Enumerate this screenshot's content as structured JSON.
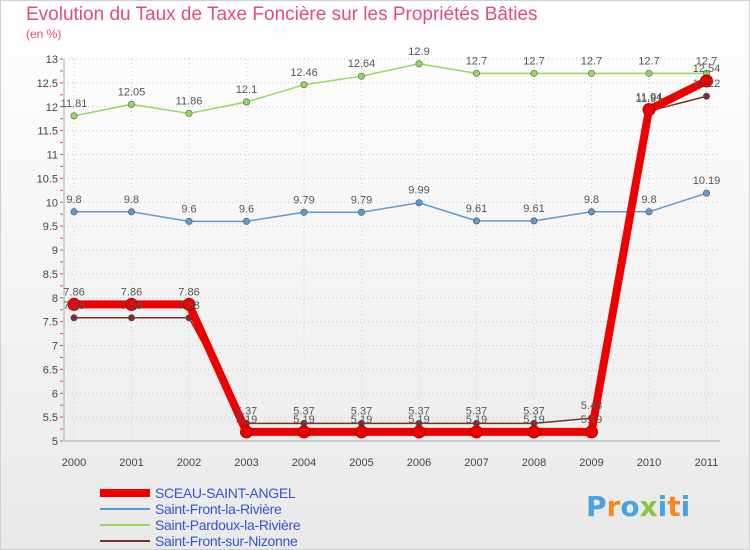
{
  "chart_data": {
    "type": "line",
    "title": "Evolution du Taux de Taxe Foncière sur les Propriétés Bâties",
    "unit_label": "(en %)",
    "xlabel": "",
    "ylabel": "",
    "categories": [
      "2000",
      "2001",
      "2002",
      "2003",
      "2004",
      "2005",
      "2006",
      "2007",
      "2008",
      "2009",
      "2010",
      "2011"
    ],
    "ylim": [
      5,
      13
    ],
    "yticks": [
      "5",
      "5.5",
      "6",
      "6.5",
      "7",
      "7.5",
      "8",
      "8.5",
      "9",
      "9.5",
      "10",
      "10.5",
      "11",
      "11.5",
      "12",
      "12.5",
      "13"
    ],
    "series": [
      {
        "name": "SCEAU-SAINT-ANGEL",
        "color": "#ee0000",
        "values": [
          7.86,
          7.86,
          7.86,
          5.19,
          5.19,
          5.19,
          5.19,
          5.19,
          5.19,
          5.19,
          11.94,
          12.54
        ],
        "labels": [
          "7.86",
          "7.86",
          "7.86",
          "5.19",
          "5.19",
          "5.19",
          "5.19",
          "5.19",
          "5.19",
          "5.19",
          "11.94",
          "12.54"
        ]
      },
      {
        "name": "Saint-Front-la-Rivière",
        "color": "#5b9bd5",
        "values": [
          9.8,
          9.8,
          9.6,
          9.6,
          9.79,
          9.79,
          9.99,
          9.61,
          9.61,
          9.8,
          9.8,
          10.19
        ],
        "labels": [
          "9.8",
          "9.8",
          "9.6",
          "9.6",
          "9.79",
          "9.79",
          "9.99",
          "9.61",
          "9.61",
          "9.8",
          "9.8",
          "10.19"
        ]
      },
      {
        "name": "Saint-Pardoux-la-Rivière",
        "color": "#8fdc5a",
        "values": [
          11.81,
          12.05,
          11.86,
          12.1,
          12.46,
          12.64,
          12.9,
          12.7,
          12.7,
          12.7,
          12.7,
          12.7
        ],
        "labels": [
          "11.81",
          "12.05",
          "11.86",
          "12.1",
          "12.46",
          "12.64",
          "12.9",
          "12.7",
          "12.7",
          "12.7",
          "12.7",
          "12.7"
        ]
      },
      {
        "name": "Saint-Front-sur-Nizonne",
        "color": "#7a2e2e",
        "values": [
          7.58,
          7.58,
          7.58,
          5.37,
          5.37,
          5.37,
          5.37,
          5.37,
          5.37,
          5.48,
          11.91,
          12.22
        ],
        "labels": [
          "7.58",
          "7.58",
          "7.58",
          "5.37",
          "5.37",
          "5.37",
          "5.37",
          "5.37",
          "5.37",
          "5.48",
          "11.91",
          "12.22"
        ]
      }
    ]
  },
  "logo_text": "Proxiti"
}
